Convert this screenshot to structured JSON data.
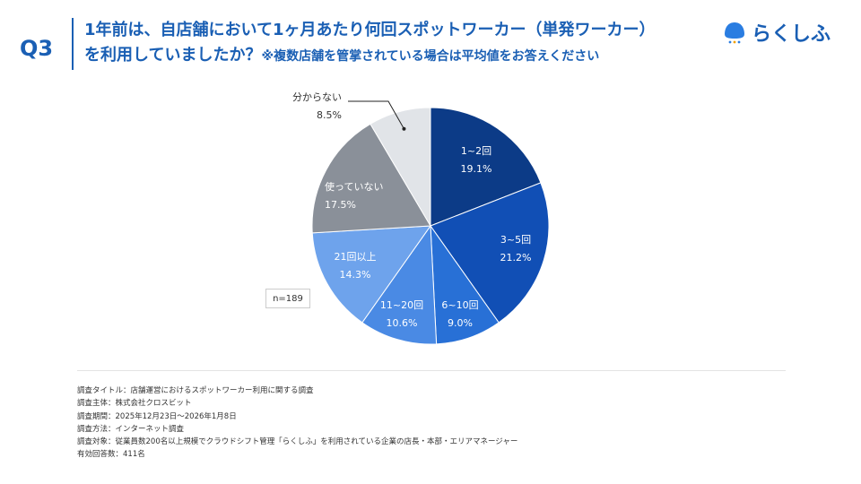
{
  "header": {
    "question_number": "Q3",
    "title_line1": "1年前は、自店舗において1ヶ月あたり何回スポットワーカー（単発ワーカー）",
    "title_line2": "を利用していましたか？",
    "title_note": "※複数店舗を管掌されている場合は平均値をお答えください",
    "logo_text": "らくしふ"
  },
  "colors": {
    "accent": "#1a5fb4"
  },
  "chart_data": {
    "type": "pie",
    "start": "top",
    "direction": "clockwise",
    "categories": [
      "1~2回",
      "3~5回",
      "6~10回",
      "11~20回",
      "21回以上",
      "使っていない",
      "分からない"
    ],
    "values": [
      19.1,
      21.2,
      9.0,
      10.6,
      14.3,
      17.5,
      8.5
    ],
    "value_labels": [
      "19.1%",
      "21.2%",
      "9.0%",
      "10.6%",
      "14.3%",
      "17.5%",
      "8.5%"
    ],
    "colors": [
      "#0c3b87",
      "#114fb5",
      "#2870d6",
      "#4a8ae4",
      "#6ea3ec",
      "#8a9099",
      "#e1e4e8"
    ],
    "sample_size": "n=189"
  },
  "footer": {
    "lines": [
      "調査タイトル：店舗運営におけるスポットワーカー利用に関する調査",
      "調査主体：株式会社クロスビット",
      "調査期間：2025年12月23日〜2026年1月8日",
      "調査方法：インターネット調査",
      "調査対象：従業員数200名以上規模でクラウドシフト管理「らくしふ」を利用されている企業の店長・本部・エリアマネージャー",
      "有効回答数：411名"
    ]
  }
}
